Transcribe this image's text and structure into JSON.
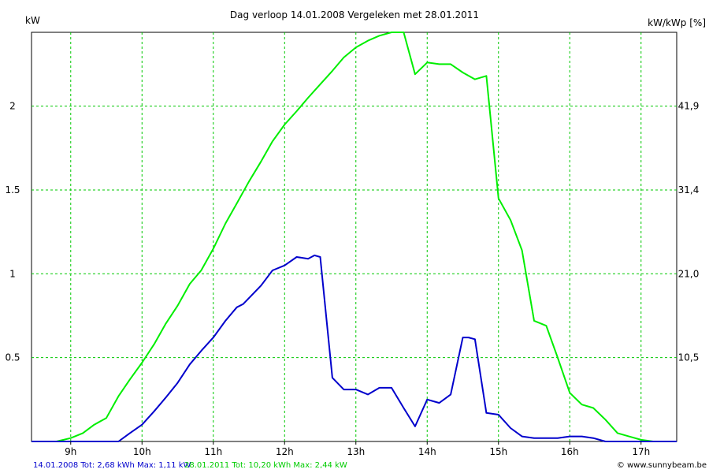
{
  "chart_data": {
    "type": "line",
    "title": "Dag  verloop 14.01.2008   Vergeleken met 28.01.2011",
    "ylabel_left": "kW",
    "ylabel_right": "kW/kWp [%]",
    "xlim": [
      8.45,
      17.5
    ],
    "ylim": [
      0,
      2.44
    ],
    "x_ticks": [
      {
        "x": 9,
        "label": "9h"
      },
      {
        "x": 10,
        "label": "10h"
      },
      {
        "x": 11,
        "label": "11h"
      },
      {
        "x": 12,
        "label": "12h"
      },
      {
        "x": 13,
        "label": "13h"
      },
      {
        "x": 14,
        "label": "14h"
      },
      {
        "x": 15,
        "label": "15h"
      },
      {
        "x": 16,
        "label": "16h"
      },
      {
        "x": 17,
        "label": "17h"
      }
    ],
    "y_ticks_left": [
      {
        "y": 0.5,
        "label": "0.5"
      },
      {
        "y": 1,
        "label": "1"
      },
      {
        "y": 1.5,
        "label": "1.5"
      },
      {
        "y": 2,
        "label": "2"
      }
    ],
    "y_ticks_right": [
      {
        "y": 0.5,
        "label": "10,5"
      },
      {
        "y": 1,
        "label": "21,0"
      },
      {
        "y": 1.5,
        "label": "31,4"
      },
      {
        "y": 2,
        "label": "41,9"
      }
    ],
    "grid": true,
    "series": [
      {
        "name": "14.01.2008",
        "color": "#0000cc",
        "legend": "14.01.2008 Tot: 2,68 kWh Max: 1,11 kW",
        "x": [
          8.45,
          9.67,
          9.83,
          10.0,
          10.17,
          10.33,
          10.5,
          10.67,
          10.83,
          11.0,
          11.17,
          11.33,
          11.42,
          11.67,
          11.83,
          12.0,
          12.17,
          12.33,
          12.42,
          12.5,
          12.67,
          12.83,
          13.0,
          13.17,
          13.33,
          13.5,
          13.67,
          13.83,
          14.0,
          14.17,
          14.33,
          14.5,
          14.58,
          14.67,
          14.83,
          15.0,
          15.17,
          15.33,
          15.5,
          15.67,
          15.83,
          16.0,
          16.17,
          16.33,
          16.5,
          16.67,
          16.83,
          17.0,
          17.5
        ],
        "y": [
          0,
          0,
          0.05,
          0.1,
          0.18,
          0.26,
          0.35,
          0.46,
          0.54,
          0.62,
          0.72,
          0.8,
          0.82,
          0.93,
          1.02,
          1.05,
          1.1,
          1.09,
          1.11,
          1.1,
          0.38,
          0.31,
          0.31,
          0.28,
          0.32,
          0.32,
          0.2,
          0.09,
          0.25,
          0.23,
          0.28,
          0.62,
          0.62,
          0.61,
          0.17,
          0.16,
          0.08,
          0.03,
          0.02,
          0.02,
          0.02,
          0.03,
          0.03,
          0.02,
          0.0,
          0,
          0,
          0,
          0
        ]
      },
      {
        "name": "28.01.2011",
        "color": "#00ee00",
        "legend": "28.01.2011 Tot: 10,20 kWh Max: 2,44 kW",
        "x": [
          8.45,
          8.8,
          9.0,
          9.17,
          9.33,
          9.5,
          9.67,
          9.83,
          10.0,
          10.17,
          10.33,
          10.5,
          10.67,
          10.83,
          11.0,
          11.17,
          11.33,
          11.5,
          11.67,
          11.83,
          12.0,
          12.17,
          12.33,
          12.5,
          12.67,
          12.83,
          13.0,
          13.17,
          13.33,
          13.5,
          13.67,
          13.83,
          14.0,
          14.17,
          14.33,
          14.5,
          14.67,
          14.83,
          15.0,
          15.17,
          15.33,
          15.5,
          15.67,
          15.83,
          16.0,
          16.17,
          16.33,
          16.5,
          16.67,
          16.83,
          17.0,
          17.17,
          17.5
        ],
        "y": [
          0,
          0.0,
          0.02,
          0.05,
          0.1,
          0.14,
          0.27,
          0.37,
          0.47,
          0.58,
          0.7,
          0.81,
          0.94,
          1.02,
          1.15,
          1.3,
          1.42,
          1.55,
          1.67,
          1.79,
          1.89,
          1.97,
          2.05,
          2.13,
          2.21,
          2.29,
          2.35,
          2.39,
          2.42,
          2.44,
          2.44,
          2.19,
          2.26,
          2.25,
          2.25,
          2.2,
          2.16,
          2.18,
          1.45,
          1.32,
          1.14,
          0.72,
          0.69,
          0.5,
          0.29,
          0.22,
          0.2,
          0.13,
          0.05,
          0.03,
          0.01,
          0,
          0
        ]
      }
    ]
  },
  "footer": {
    "legend1": "14.01.2008 Tot: 2,68 kWh Max: 1,11 kW",
    "legend2": "28.01.2011 Tot: 10,20 kWh Max: 2,44 kW",
    "credit": "© www.sunnybeam.be"
  }
}
